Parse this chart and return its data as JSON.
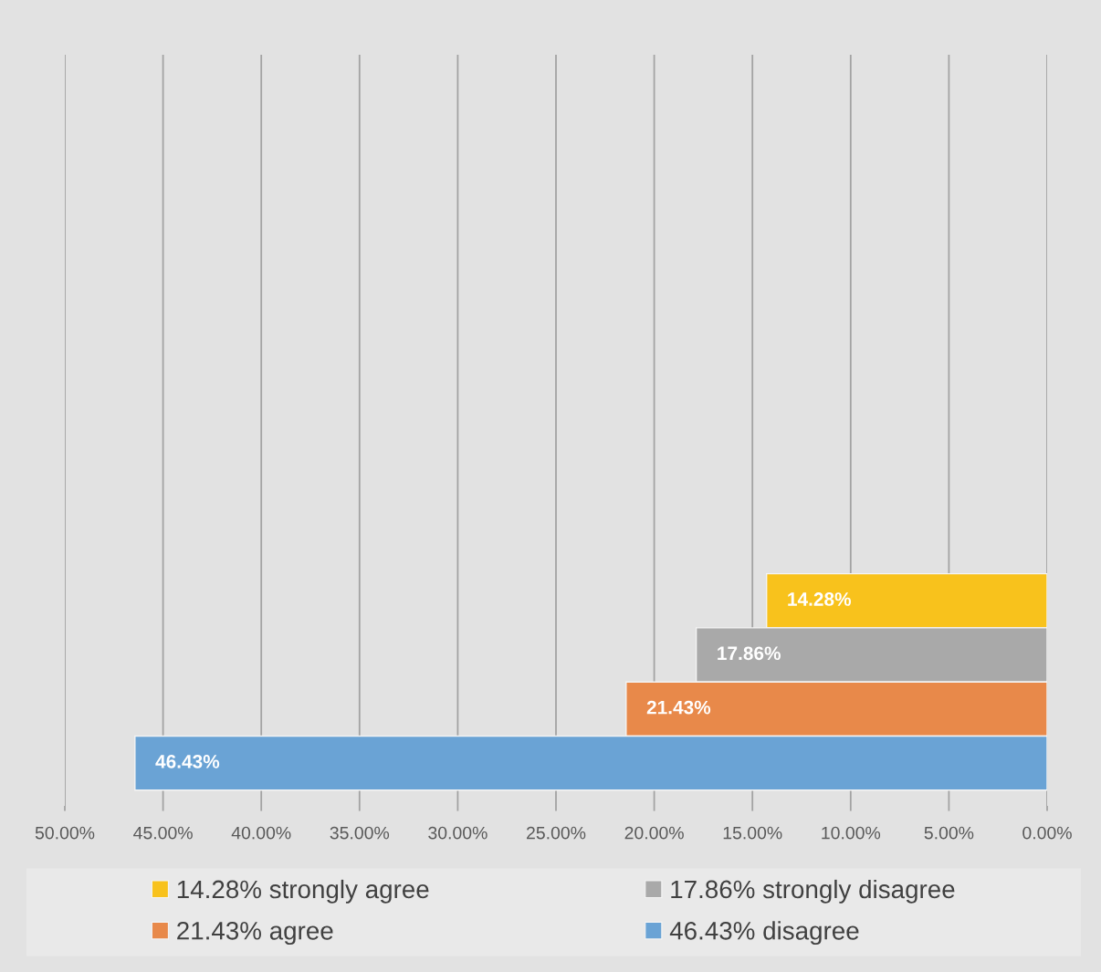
{
  "chart_data": {
    "type": "bar",
    "orientation": "horizontal",
    "categories": [
      null
    ],
    "series": [
      {
        "name": "14.28% strongly agree",
        "color": "#f8c21c",
        "values": [
          14.28
        ],
        "value_labels": [
          "14.28%"
        ]
      },
      {
        "name": "17.86% strongly disagree",
        "color": "#a9a9a9",
        "values": [
          17.86
        ],
        "value_labels": [
          "17.86%"
        ]
      },
      {
        "name": "21.43% agree",
        "color": "#e8894a",
        "values": [
          21.43
        ],
        "value_labels": [
          "21.43%"
        ]
      },
      {
        "name": "46.43% disagree",
        "color": "#6aa3d5",
        "values": [
          46.43
        ],
        "value_labels": [
          "46.43%"
        ]
      }
    ],
    "xlim": [
      50,
      0
    ],
    "xticks": [
      {
        "value": 50,
        "label": "50.00%"
      },
      {
        "value": 45,
        "label": "45.00%"
      },
      {
        "value": 40,
        "label": "40.00%"
      },
      {
        "value": 35,
        "label": "35.00%"
      },
      {
        "value": 30,
        "label": "30.00%"
      },
      {
        "value": 25,
        "label": "25.00%"
      },
      {
        "value": 20,
        "label": "20.00%"
      },
      {
        "value": 15,
        "label": "15.00%"
      },
      {
        "value": 10,
        "label": "10.00%"
      },
      {
        "value": 5,
        "label": "5.00%"
      },
      {
        "value": 0,
        "label": "0.00%"
      }
    ],
    "grid": "x",
    "legend": "bottom"
  }
}
